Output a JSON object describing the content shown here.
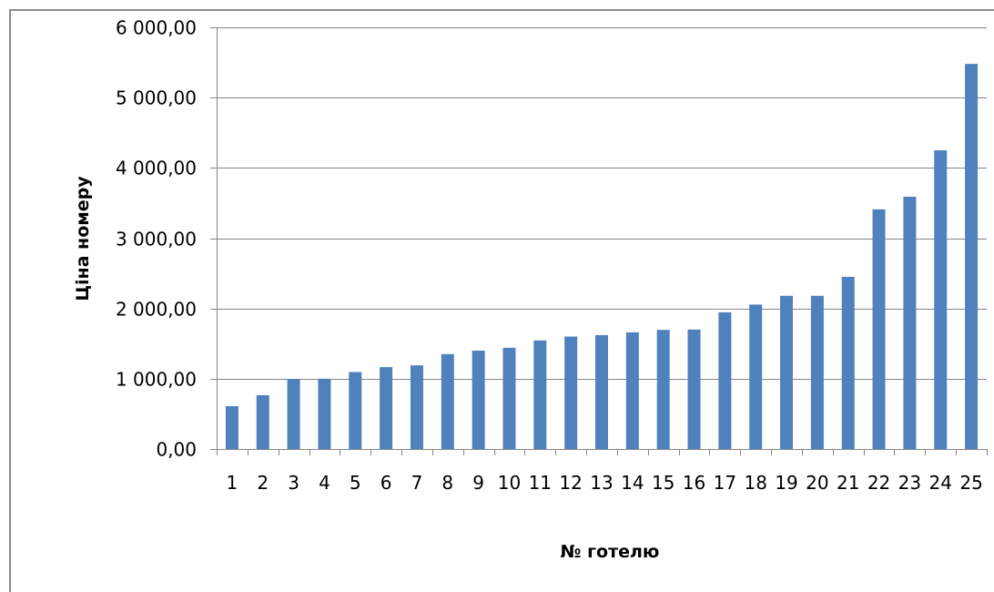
{
  "chart_data": {
    "type": "bar",
    "title": "",
    "xlabel": "№ готелю",
    "ylabel": "Ціна номеру",
    "categories": [
      "1",
      "2",
      "3",
      "4",
      "5",
      "6",
      "7",
      "8",
      "9",
      "10",
      "11",
      "12",
      "13",
      "14",
      "15",
      "16",
      "17",
      "18",
      "19",
      "20",
      "21",
      "22",
      "23",
      "24",
      "25"
    ],
    "values": [
      610,
      765,
      995,
      1000,
      1095,
      1165,
      1190,
      1350,
      1400,
      1440,
      1545,
      1600,
      1620,
      1660,
      1695,
      1700,
      1945,
      2055,
      2180,
      2180,
      2450,
      3410,
      3590,
      4250,
      5480
    ],
    "ylim": [
      0,
      6000
    ],
    "yticks": [
      0,
      1000,
      2000,
      3000,
      4000,
      5000,
      6000
    ],
    "ytick_labels": [
      "0,00",
      "1 000,00",
      "2 000,00",
      "3 000,00",
      "4 000,00",
      "5 000,00",
      "6 000,00"
    ],
    "grid": true,
    "bar_color": "#4f81bd",
    "grid_color": "#868686"
  }
}
